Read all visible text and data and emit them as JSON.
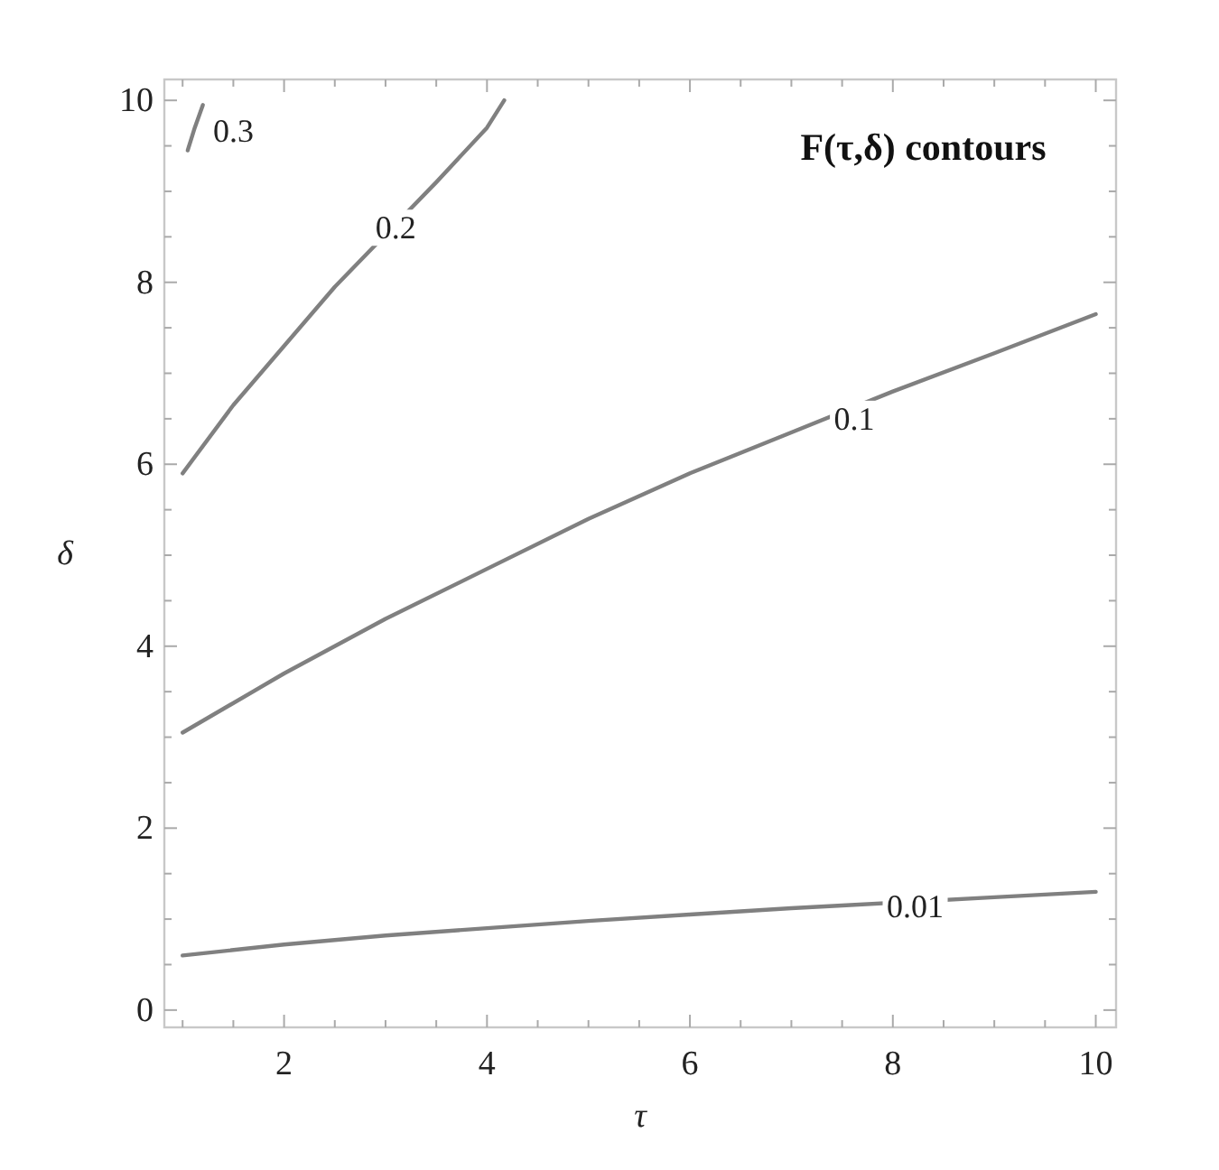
{
  "chart_data": {
    "type": "line",
    "title": "F(τ,δ) contours",
    "xlabel": "τ",
    "ylabel": "δ",
    "xlim": [
      0.82,
      10.2
    ],
    "ylim": [
      -0.19,
      10.23
    ],
    "xticks": [
      {
        "value": 1,
        "label": null
      },
      {
        "value": 1.5,
        "label": null
      },
      2,
      {
        "value": 2.5,
        "label": null
      },
      {
        "value": 3,
        "label": null
      },
      {
        "value": 3.5,
        "label": null
      },
      4,
      {
        "value": 4.5,
        "label": null
      },
      {
        "value": 5,
        "label": null
      },
      {
        "value": 5.5,
        "label": null
      },
      6,
      {
        "value": 6.5,
        "label": null
      },
      {
        "value": 7,
        "label": null
      },
      {
        "value": 7.5,
        "label": null
      },
      8,
      {
        "value": 8.5,
        "label": null
      },
      {
        "value": 9,
        "label": null
      },
      {
        "value": 9.5,
        "label": null
      },
      10
    ],
    "yticks": [
      0,
      {
        "value": 0.5,
        "label": null
      },
      {
        "value": 1,
        "label": null
      },
      {
        "value": 1.5,
        "label": null
      },
      2,
      {
        "value": 2.5,
        "label": null
      },
      {
        "value": 3,
        "label": null
      },
      {
        "value": 3.5,
        "label": null
      },
      4,
      {
        "value": 4.5,
        "label": null
      },
      {
        "value": 5,
        "label": null
      },
      {
        "value": 5.5,
        "label": null
      },
      6,
      {
        "value": 6.5,
        "label": null
      },
      {
        "value": 7,
        "label": null
      },
      {
        "value": 7.5,
        "label": null
      },
      8,
      {
        "value": 8.5,
        "label": null
      },
      {
        "value": 9,
        "label": null
      },
      {
        "value": 9.5,
        "label": null
      },
      10
    ],
    "grid": false,
    "line_style": "solid",
    "marker": "none",
    "series": [
      {
        "color": "#808080",
        "x": [
          1,
          2,
          3,
          4,
          5,
          6,
          7,
          7.5,
          9,
          10
        ],
        "values": [
          0.6,
          0.72,
          0.82,
          0.9,
          0.98,
          1.05,
          1.12,
          1.15,
          1.24,
          1.3
        ]
      },
      {
        "color": "#808080",
        "x": [
          1,
          2,
          3,
          4,
          5,
          6,
          7,
          8,
          9,
          10
        ],
        "values": [
          3.05,
          3.7,
          4.3,
          4.85,
          5.4,
          5.9,
          6.35,
          6.8,
          7.22,
          7.65
        ]
      },
      {
        "color": "#808080",
        "x": [
          1,
          1.5,
          2,
          2.5,
          3.5,
          4,
          4.17
        ],
        "values": [
          5.9,
          6.65,
          7.3,
          7.95,
          9.1,
          9.7,
          10
        ]
      },
      {
        "color": "#808080",
        "x": [
          1.05,
          1.12,
          1.2
        ],
        "values": [
          9.45,
          9.7,
          9.95
        ]
      }
    ],
    "annotations": [
      {
        "text": "0.01",
        "x": 8.22,
        "y": 1.14
      },
      {
        "text": "0.1",
        "x": 7.62,
        "y": 6.5
      },
      {
        "text": "0.2",
        "x": 3.1,
        "y": 8.6
      },
      {
        "text": "0.3",
        "x": 1.5,
        "y": 9.66
      }
    ]
  }
}
